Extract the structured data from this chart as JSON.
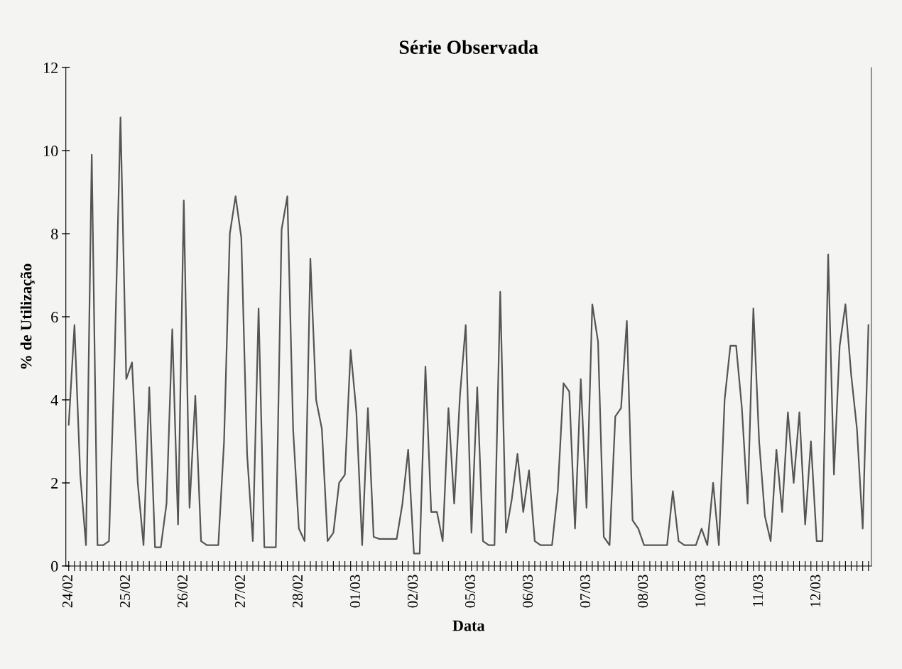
{
  "chart_data": {
    "type": "line",
    "title": "Série Observada",
    "xlabel": "Data",
    "ylabel": "% de Utilização",
    "grid": false,
    "legend": false,
    "marker": "none",
    "line_style": "solid",
    "ylim": [
      0,
      12
    ],
    "yticks": [
      0,
      2,
      4,
      6,
      8,
      10,
      12
    ],
    "categories": [
      "24/02",
      null,
      null,
      null,
      null,
      null,
      null,
      null,
      null,
      null,
      "25/02",
      null,
      null,
      null,
      null,
      null,
      null,
      null,
      null,
      null,
      "26/02",
      null,
      null,
      null,
      null,
      null,
      null,
      null,
      null,
      null,
      "27/02",
      null,
      null,
      null,
      null,
      null,
      null,
      null,
      null,
      null,
      "28/02",
      null,
      null,
      null,
      null,
      null,
      null,
      null,
      null,
      null,
      "01/03",
      null,
      null,
      null,
      null,
      null,
      null,
      null,
      null,
      null,
      "02/03",
      null,
      null,
      null,
      null,
      null,
      null,
      null,
      null,
      null,
      "05/03",
      null,
      null,
      null,
      null,
      null,
      null,
      null,
      null,
      null,
      "06/03",
      null,
      null,
      null,
      null,
      null,
      null,
      null,
      null,
      null,
      "07/03",
      null,
      null,
      null,
      null,
      null,
      null,
      null,
      null,
      null,
      "08/03",
      null,
      null,
      null,
      null,
      null,
      null,
      null,
      null,
      null,
      "10/03",
      null,
      null,
      null,
      null,
      null,
      null,
      null,
      null,
      null,
      "11/03",
      null,
      null,
      null,
      null,
      null,
      null,
      null,
      null,
      null,
      "12/03",
      null,
      null,
      null,
      null,
      null,
      null,
      null,
      null,
      null
    ],
    "series": [
      {
        "color": "#555555",
        "values": [
          3.4,
          5.8,
          2.2,
          0.5,
          9.9,
          0.5,
          0.5,
          0.6,
          5.1,
          10.8,
          4.5,
          4.9,
          2.0,
          0.5,
          4.3,
          0.45,
          0.45,
          1.5,
          5.7,
          1.0,
          8.8,
          1.4,
          4.1,
          0.6,
          0.5,
          0.5,
          0.5,
          3.0,
          8.0,
          8.9,
          7.9,
          2.7,
          0.6,
          6.2,
          0.45,
          0.45,
          0.45,
          8.1,
          8.9,
          3.3,
          0.9,
          0.6,
          7.4,
          4.0,
          3.3,
          0.6,
          0.8,
          2.0,
          2.2,
          5.2,
          3.7,
          0.5,
          3.8,
          0.7,
          0.65,
          0.65,
          0.65,
          0.65,
          1.5,
          2.8,
          0.3,
          0.3,
          4.8,
          1.3,
          1.3,
          0.6,
          3.8,
          1.5,
          4.1,
          5.8,
          0.8,
          4.3,
          0.6,
          0.5,
          0.5,
          6.6,
          0.8,
          1.6,
          2.7,
          1.3,
          2.3,
          0.6,
          0.5,
          0.5,
          0.5,
          1.8,
          4.4,
          4.2,
          0.9,
          4.5,
          1.4,
          6.3,
          5.4,
          0.7,
          0.5,
          3.6,
          3.8,
          5.9,
          1.1,
          0.9,
          0.5,
          0.5,
          0.5,
          0.5,
          0.5,
          1.8,
          0.6,
          0.5,
          0.5,
          0.5,
          0.9,
          0.5,
          2.0,
          0.5,
          4.0,
          5.3,
          5.3,
          3.8,
          1.5,
          6.2,
          3.0,
          1.2,
          0.6,
          2.8,
          1.3,
          3.7,
          2.0,
          3.7,
          1.0,
          3.0,
          0.6,
          0.6,
          7.5,
          2.2,
          5.3,
          6.3,
          4.6,
          3.3,
          0.9,
          5.8
        ]
      }
    ]
  }
}
